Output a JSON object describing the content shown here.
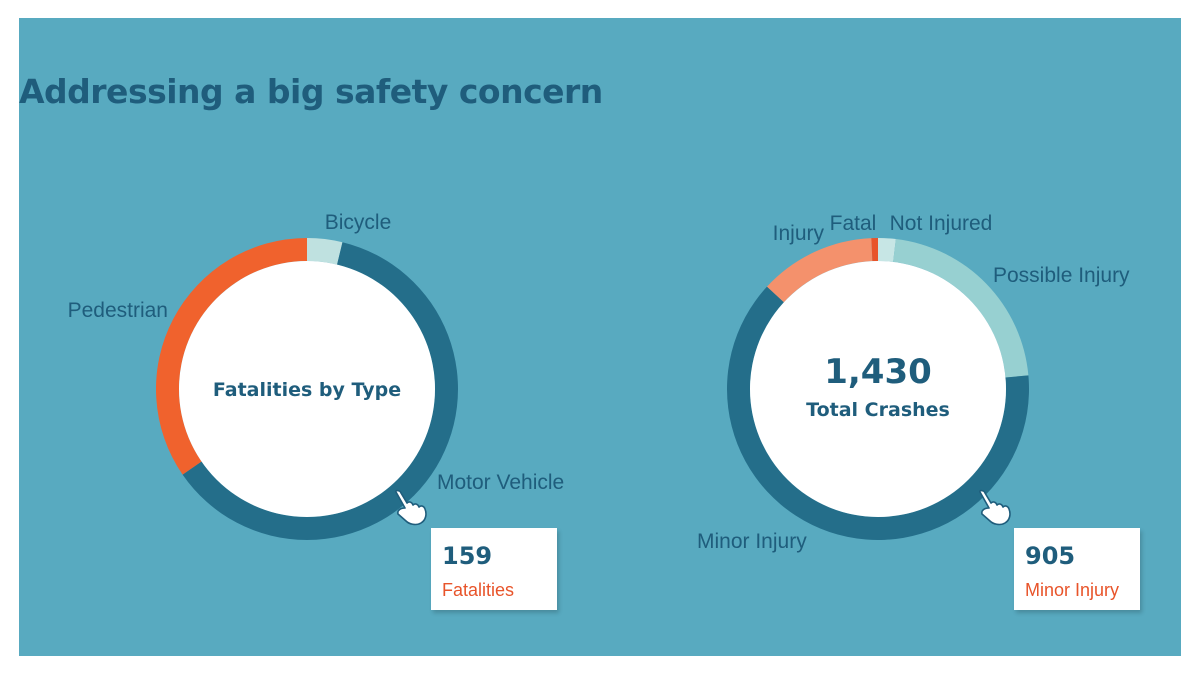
{
  "title": "Addressing a big safety concern",
  "colors": {
    "background": "#58aac0",
    "title": "#1f5d7c",
    "dark_blue": "#246e8a",
    "orange": "#f0622d",
    "light_teal": "#bfe1e0",
    "salmon": "#f4916c",
    "fatal_red": "#e8542a",
    "possible_teal": "#97d0d1",
    "not_injured": "#c7e6e5"
  },
  "chart_data": [
    {
      "type": "pie",
      "center_label": "Fatalities by Type",
      "total": 159,
      "slices": [
        {
          "name": "Bicycle",
          "value": 6,
          "color": "#bfe1e0"
        },
        {
          "name": "Motor Vehicle",
          "value": 98,
          "color": "#246e8a"
        },
        {
          "name": "Pedestrian",
          "value": 55,
          "color": "#f0622d"
        }
      ],
      "callout": {
        "value": "159",
        "label": "Fatalities",
        "icon": "pointing-hand-icon"
      }
    },
    {
      "type": "pie",
      "center_total": "1,430",
      "center_label": "Total Crashes",
      "total": 1430,
      "slices": [
        {
          "name": "Not Injured",
          "value": 27,
          "color": "#c7e6e5"
        },
        {
          "name": "Possible Injury",
          "value": 310,
          "color": "#97d0d1"
        },
        {
          "name": "Minor Injury",
          "value": 905,
          "color": "#246e8a"
        },
        {
          "name": "Injury",
          "value": 178,
          "color": "#f4916c"
        },
        {
          "name": "Fatal",
          "value": 10,
          "color": "#e8542a"
        }
      ],
      "callout": {
        "value": "905",
        "label": "Minor Injury",
        "icon": "pointing-hand-icon"
      }
    }
  ]
}
